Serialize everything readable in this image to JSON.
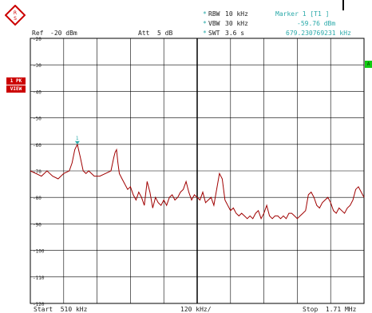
{
  "header": {
    "rbw_label": "RBW",
    "rbw_value": "10 kHz",
    "vbw_label": "VBW",
    "vbw_value": "30 kHz",
    "swt_label": "SWT",
    "swt_value": "3.6 s",
    "ref_label": "Ref",
    "ref_value": "-20 dBm",
    "att_label": "Att",
    "att_value": "5 dB"
  },
  "marker": {
    "title": "Marker 1 [T1 ]",
    "level": "-59.76 dBm",
    "frequency": "679.230769231 kHz",
    "label": "1",
    "color": "#2aa9a9"
  },
  "side": {
    "pk_label": "1 PK",
    "view_label": "VIEW",
    "right_badge": "A"
  },
  "footer": {
    "start": "Start  510 kHz",
    "span": "120 kHz/",
    "stop": "Stop  1.71 MHz"
  },
  "colors": {
    "trace": "#a00000",
    "grid": "#000000",
    "label_bg": "#cc0000",
    "logo": "#cc0000",
    "badge": "#11cc11"
  },
  "icons": {
    "logo": "rohde-schwarz-logo-icon",
    "marker": "marker-triangle-icon"
  },
  "chart_data": {
    "type": "line",
    "xlabel": "",
    "ylabel": "",
    "xlim": [
      510,
      1710
    ],
    "ylim": [
      -120,
      -20
    ],
    "y_ticks": [
      "-20",
      "-30",
      "-40",
      "-50",
      "-60",
      "-70",
      "-80",
      "-90",
      "-100",
      "-110",
      "-120"
    ],
    "grid": true,
    "series": [
      {
        "x": [
          510,
          530,
          550,
          570,
          590,
          610,
          630,
          650,
          660,
          670,
          679,
          690,
          700,
          710,
          720,
          740,
          760,
          780,
          800,
          810,
          815,
          820,
          825,
          830,
          840,
          850,
          860,
          870,
          880,
          890,
          900,
          910,
          920,
          930,
          940,
          950,
          960,
          970,
          980,
          990,
          1000,
          1010,
          1020,
          1030,
          1040,
          1050,
          1060,
          1070,
          1080,
          1090,
          1100,
          1110,
          1120,
          1130,
          1140,
          1150,
          1160,
          1170,
          1180,
          1190,
          1200,
          1210,
          1220,
          1230,
          1240,
          1250,
          1260,
          1270,
          1280,
          1290,
          1300,
          1310,
          1320,
          1330,
          1340,
          1350,
          1360,
          1370,
          1380,
          1390,
          1400,
          1410,
          1420,
          1430,
          1440,
          1450,
          1460,
          1470,
          1480,
          1490,
          1500,
          1510,
          1520,
          1530,
          1540,
          1550,
          1560,
          1570,
          1580,
          1590,
          1600,
          1610,
          1620,
          1630,
          1640,
          1650,
          1660,
          1670,
          1680,
          1690,
          1700,
          1710
        ],
        "y": [
          -70,
          -71,
          -72,
          -70,
          -72,
          -73,
          -71,
          -70,
          -67,
          -62,
          -60,
          -65,
          -70,
          -71,
          -70,
          -72,
          -72,
          -71,
          -70,
          -65,
          -63,
          -62,
          -67,
          -71,
          -73,
          -75,
          -77,
          -76,
          -79,
          -81,
          -78,
          -80,
          -83,
          -74,
          -78,
          -84,
          -80,
          -82,
          -83,
          -81,
          -83,
          -80,
          -79,
          -81,
          -80,
          -78,
          -77,
          -74,
          -78,
          -81,
          -79,
          -80,
          -81,
          -78,
          -82,
          -81,
          -80,
          -83,
          -77,
          -71,
          -73,
          -81,
          -83,
          -85,
          -84,
          -86,
          -87,
          -86,
          -87,
          -88,
          -87,
          -88,
          -86,
          -85,
          -88,
          -86,
          -83,
          -87,
          -88,
          -87,
          -87,
          -88,
          -87,
          -88,
          -86,
          -86,
          -87,
          -88,
          -87,
          -86,
          -85,
          -79,
          -78,
          -80,
          -83,
          -84,
          -82,
          -81,
          -80,
          -82,
          -85,
          -86,
          -84,
          -85,
          -86,
          -84,
          -83,
          -81,
          -77,
          -76,
          -78,
          -80
        ]
      }
    ]
  }
}
